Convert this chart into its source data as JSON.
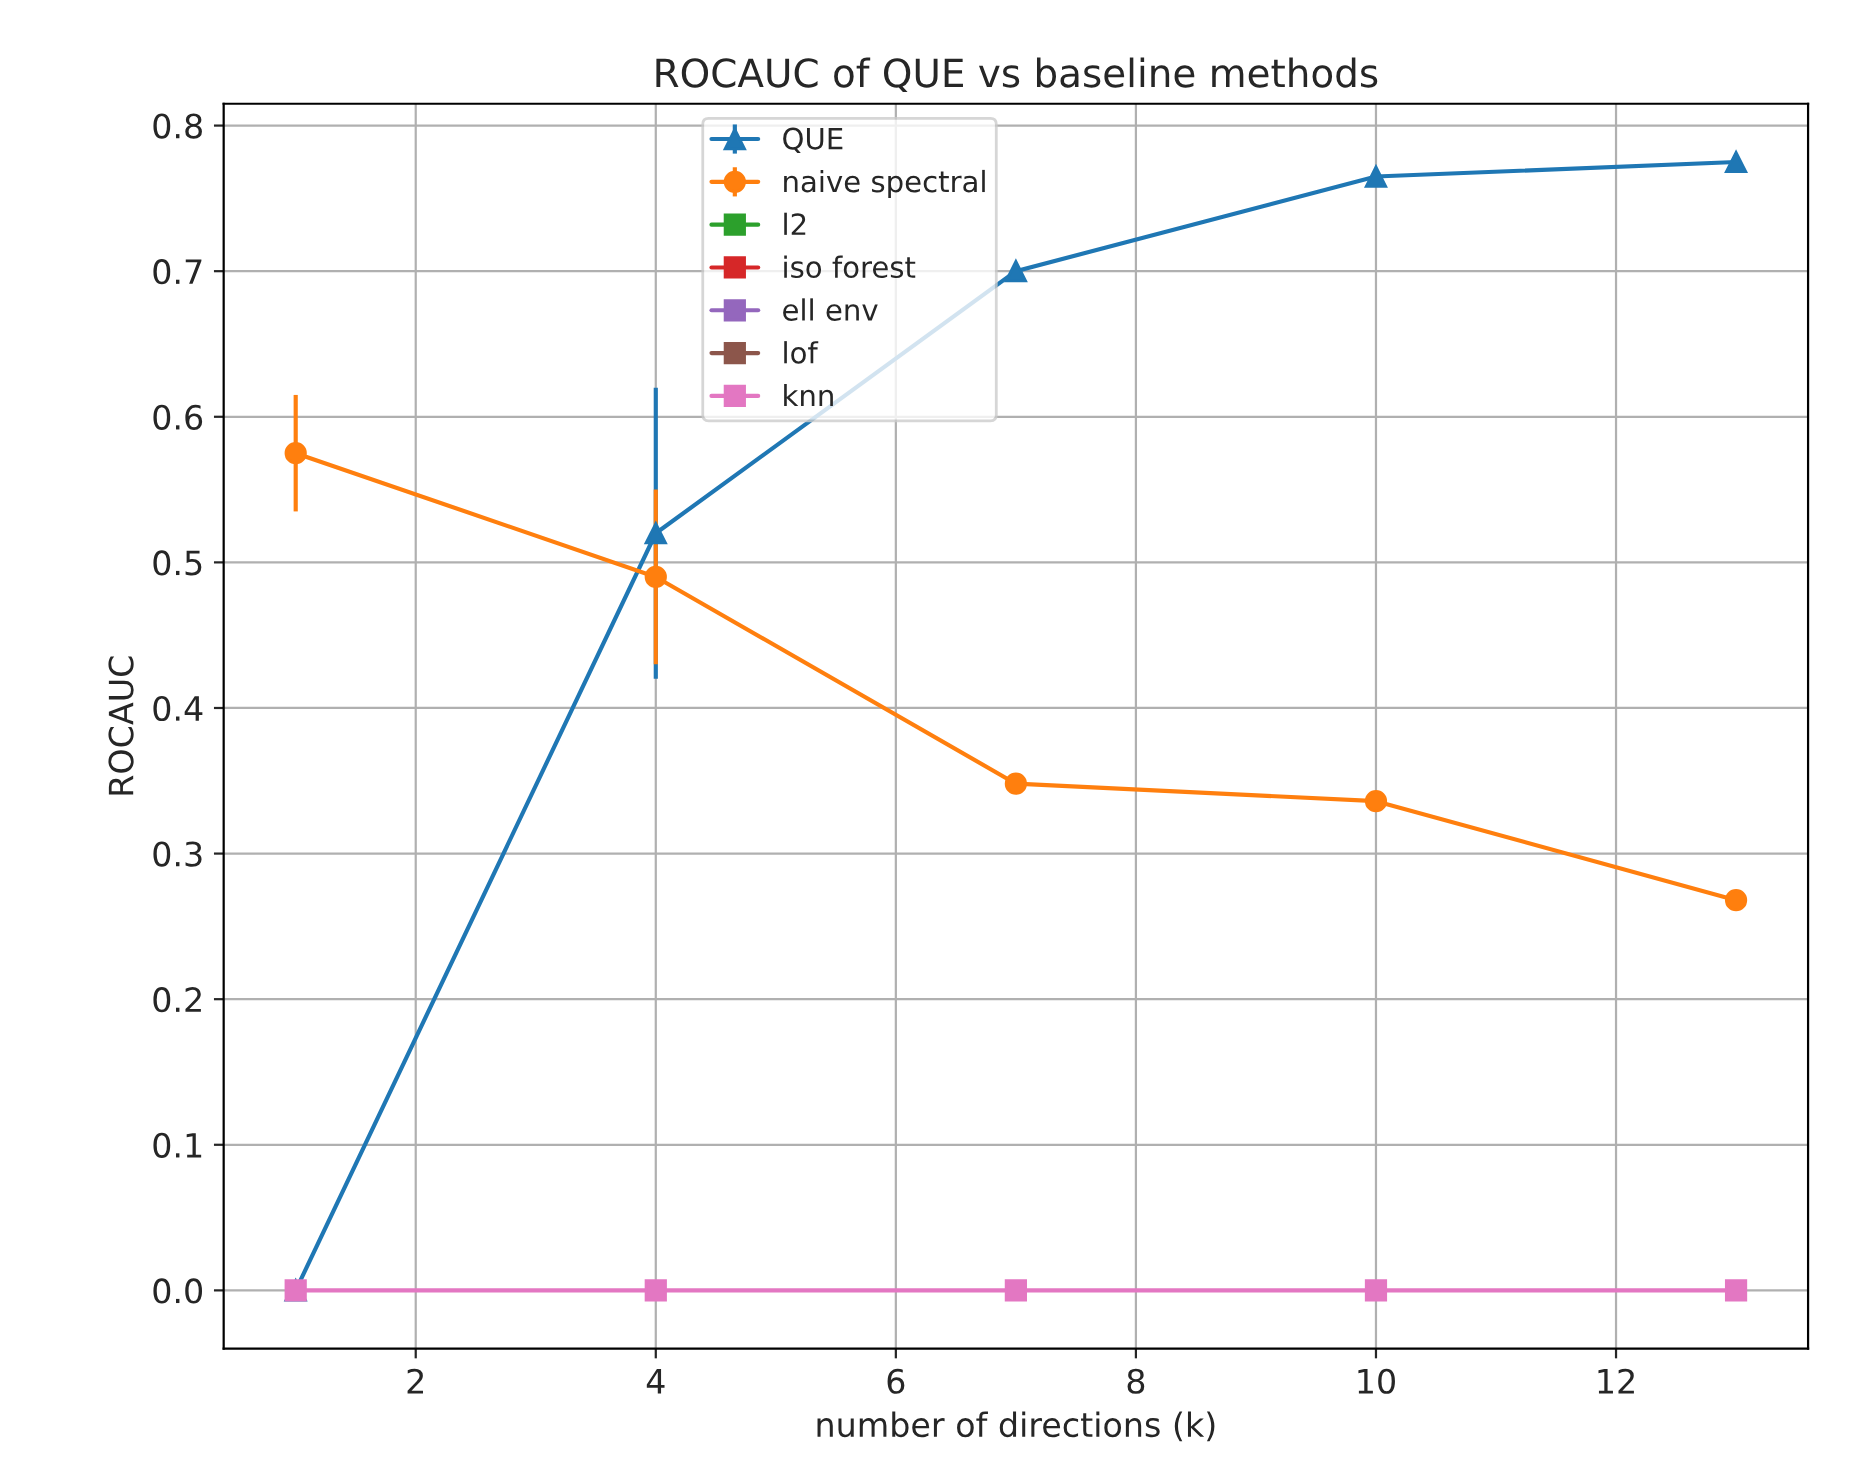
{
  "chart_data": {
    "type": "line",
    "title": "ROCAUC of QUE vs baseline methods",
    "xlabel": "number of directions (k)",
    "ylabel": "ROCAUC",
    "x": [
      1,
      4,
      7,
      10,
      13
    ],
    "series": [
      {
        "name": "QUE",
        "color": "#1f77b4",
        "marker": "triangle",
        "values": [
          0,
          0.52,
          0.7,
          0.765,
          0.775
        ],
        "errors": [
          null,
          0.1,
          null,
          null,
          null
        ]
      },
      {
        "name": "naive spectral",
        "color": "#ff7f0e",
        "marker": "circle",
        "values": [
          0.575,
          0.49,
          0.348,
          0.336,
          0.268
        ],
        "errors": [
          0.04,
          0.06,
          null,
          null,
          null
        ]
      },
      {
        "name": "l2",
        "color": "#2ca02c",
        "marker": "square",
        "values": [
          null,
          null,
          null,
          null,
          null
        ]
      },
      {
        "name": "iso forest",
        "color": "#d62728",
        "marker": "square",
        "values": [
          null,
          null,
          null,
          null,
          null
        ]
      },
      {
        "name": "ell env",
        "color": "#9467bd",
        "marker": "square",
        "values": [
          null,
          null,
          null,
          null,
          null
        ]
      },
      {
        "name": "lof",
        "color": "#8c564b",
        "marker": "square",
        "values": [
          null,
          null,
          null,
          null,
          null
        ]
      },
      {
        "name": "knn",
        "color": "#e377c2",
        "marker": "square",
        "values": [
          0,
          0,
          0,
          0,
          0
        ]
      }
    ],
    "xlim": [
      0.4,
      13.6
    ],
    "xticks": [
      2,
      4,
      6,
      8,
      10,
      12
    ],
    "ylim": [
      -0.04,
      0.815
    ],
    "yticks": [
      {
        "value": 0,
        "label": "0.0"
      },
      0.1,
      0.2,
      0.3,
      0.4,
      0.5,
      0.6,
      0.7,
      0.8
    ],
    "grid": true,
    "legend": "top center",
    "line_style": "solid"
  }
}
